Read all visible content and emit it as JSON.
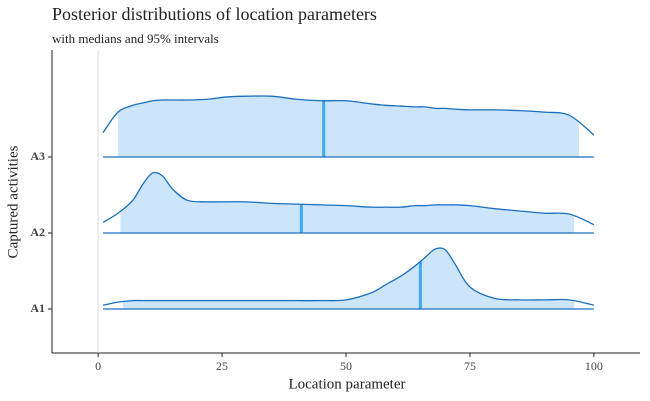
{
  "chart_data": {
    "type": "ridgeline",
    "title": "Posterior distributions of location parameters",
    "subtitle": "with medians and 95% intervals",
    "x_label": "Location parameter",
    "y_label": "Captured activities",
    "x": [
      1,
      4,
      7,
      9,
      11,
      13,
      15,
      18,
      22,
      26,
      30,
      35,
      40,
      45,
      50,
      55,
      58,
      61,
      64,
      66,
      68,
      70,
      72,
      75,
      80,
      85,
      90,
      95,
      100
    ],
    "series": [
      {
        "name": "A1",
        "color": "#1a6fbf",
        "fill": "#cce5fb",
        "median_color": "#3fa9f5",
        "density": [
          0.05,
          0.09,
          0.11,
          0.11,
          0.11,
          0.11,
          0.11,
          0.11,
          0.11,
          0.11,
          0.11,
          0.11,
          0.11,
          0.11,
          0.12,
          0.21,
          0.32,
          0.43,
          0.57,
          0.68,
          0.79,
          0.78,
          0.59,
          0.29,
          0.14,
          0.12,
          0.12,
          0.12,
          0.05
        ],
        "median": 65,
        "interval": [
          5,
          96
        ]
      },
      {
        "name": "A2",
        "color": "#1a6fbf",
        "fill": "#cce5fb",
        "median_color": "#3fa9f5",
        "density": [
          0.14,
          0.26,
          0.43,
          0.64,
          0.79,
          0.75,
          0.58,
          0.43,
          0.41,
          0.41,
          0.41,
          0.39,
          0.38,
          0.37,
          0.36,
          0.34,
          0.34,
          0.34,
          0.36,
          0.36,
          0.37,
          0.37,
          0.37,
          0.36,
          0.32,
          0.29,
          0.26,
          0.25,
          0.11
        ],
        "median": 41,
        "interval": [
          4.5,
          96
        ]
      },
      {
        "name": "A3",
        "color": "#1a6fbf",
        "fill": "#cce5fb",
        "median_color": "#3fa9f5",
        "density": [
          0.32,
          0.59,
          0.68,
          0.71,
          0.74,
          0.75,
          0.75,
          0.75,
          0.76,
          0.79,
          0.8,
          0.8,
          0.76,
          0.74,
          0.74,
          0.7,
          0.68,
          0.67,
          0.66,
          0.66,
          0.64,
          0.64,
          0.63,
          0.62,
          0.62,
          0.61,
          0.59,
          0.55,
          0.29
        ],
        "median": 45.5,
        "interval": [
          4,
          97
        ]
      }
    ],
    "xlim": [
      -9.3,
      109.3
    ],
    "xticks": [
      0,
      25,
      50,
      75,
      100
    ],
    "zero_line": true
  }
}
